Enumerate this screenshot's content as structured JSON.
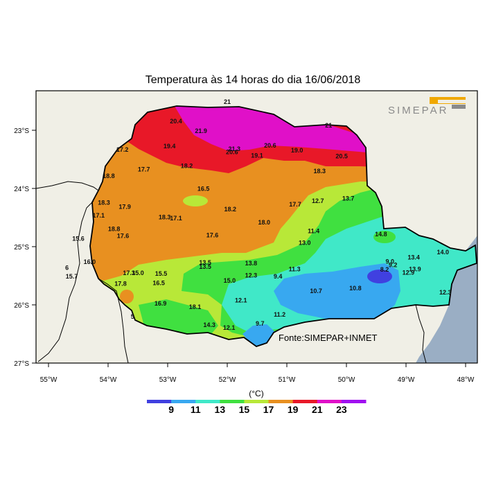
{
  "title": "Temperatura às 14 horas do dia 16/06/2018",
  "logo_text": "SIMEPAR",
  "source": "Fonte:SIMEPAR+INMET",
  "colorbar": {
    "unit": "(°C)",
    "labels": [
      "9",
      "11",
      "13",
      "15",
      "17",
      "19",
      "21",
      "23"
    ],
    "colors": [
      "#4040e0",
      "#38a8f0",
      "#40e8c8",
      "#40e040",
      "#b8e838",
      "#e89020",
      "#e81828",
      "#e010c8",
      "#a010f0"
    ]
  },
  "axes": {
    "lat_labels": [
      "23°S",
      "24°S",
      "25°S",
      "26°S",
      "27°S"
    ],
    "lon_labels": [
      "55°W",
      "54°W",
      "53°W",
      "52°W",
      "51°W",
      "50°W",
      "49°W",
      "48°W"
    ]
  },
  "colors": {
    "background": "#f0efe6",
    "ocean": "#9aaec4",
    "border": "#000000"
  },
  "observations": [
    {
      "v": "20.4",
      "lon": -52.86,
      "lat": -22.88
    },
    {
      "v": "21.9",
      "lon": -52.44,
      "lat": -23.05
    },
    {
      "v": "19.4",
      "lon": -52.97,
      "lat": -23.31
    },
    {
      "v": "20.6",
      "lon": -51.92,
      "lat": -23.41
    },
    {
      "v": "21.3",
      "lon": -51.88,
      "lat": -23.36
    },
    {
      "v": "20.6",
      "lon": -51.28,
      "lat": -23.3
    },
    {
      "v": "19.1",
      "lon": -51.5,
      "lat": -23.47
    },
    {
      "v": "19.0",
      "lon": -50.83,
      "lat": -23.38
    },
    {
      "v": "20.5",
      "lon": -50.08,
      "lat": -23.48
    },
    {
      "v": "17.2",
      "lon": -53.76,
      "lat": -23.37
    },
    {
      "v": "17.7",
      "lon": -53.4,
      "lat": -23.71
    },
    {
      "v": "18.2",
      "lon": -52.68,
      "lat": -23.65
    },
    {
      "v": "18.3",
      "lon": -50.45,
      "lat": -23.74
    },
    {
      "v": "18.8",
      "lon": -53.99,
      "lat": -23.82
    },
    {
      "v": "16.5",
      "lon": -52.4,
      "lat": -24.04
    },
    {
      "v": "18.3",
      "lon": -54.07,
      "lat": -24.28
    },
    {
      "v": "17.9",
      "lon": -53.72,
      "lat": -24.35
    },
    {
      "v": "18.2",
      "lon": -51.95,
      "lat": -24.39
    },
    {
      "v": "17.7",
      "lon": -50.86,
      "lat": -24.31
    },
    {
      "v": "12.7",
      "lon": -50.48,
      "lat": -24.25
    },
    {
      "v": "13.7",
      "lon": -49.97,
      "lat": -24.21
    },
    {
      "v": "17.1",
      "lon": -54.16,
      "lat": -24.5
    },
    {
      "v": "18.3",
      "lon": -53.05,
      "lat": -24.53
    },
    {
      "v": "17.1",
      "lon": -52.86,
      "lat": -24.55
    },
    {
      "v": "18.0",
      "lon": -51.38,
      "lat": -24.62
    },
    {
      "v": "11.4",
      "lon": -50.55,
      "lat": -24.77
    },
    {
      "v": "14.8",
      "lon": -49.42,
      "lat": -24.82
    },
    {
      "v": "18.8",
      "lon": -53.9,
      "lat": -24.73
    },
    {
      "v": "17.6",
      "lon": -53.75,
      "lat": -24.85
    },
    {
      "v": "17.6",
      "lon": -52.25,
      "lat": -24.84
    },
    {
      "v": "15.6",
      "lon": -54.5,
      "lat": -24.9
    },
    {
      "v": "13.0",
      "lon": -50.7,
      "lat": -24.97
    },
    {
      "v": "14.0",
      "lon": -48.38,
      "lat": -25.13
    },
    {
      "v": "16.0",
      "lon": -54.31,
      "lat": -25.3
    },
    {
      "v": "13.5",
      "lon": -52.37,
      "lat": -25.31
    },
    {
      "v": "13.5",
      "lon": -52.37,
      "lat": -25.38
    },
    {
      "v": "13.8",
      "lon": -51.6,
      "lat": -25.32
    },
    {
      "v": "11.3",
      "lon": -50.87,
      "lat": -25.42
    },
    {
      "v": "9.0",
      "lon": -49.27,
      "lat": -25.29
    },
    {
      "v": "9.2",
      "lon": -49.22,
      "lat": -25.35
    },
    {
      "v": "8.2",
      "lon": -49.36,
      "lat": -25.43
    },
    {
      "v": "13.4",
      "lon": -48.87,
      "lat": -25.22
    },
    {
      "v": "13.9",
      "lon": -48.85,
      "lat": -25.42
    },
    {
      "v": "12.9",
      "lon": -48.96,
      "lat": -25.48
    },
    {
      "v": "6",
      "lon": -54.69,
      "lat": -25.4
    },
    {
      "v": "17.3",
      "lon": -53.65,
      "lat": -25.49
    },
    {
      "v": "15.0",
      "lon": -53.5,
      "lat": -25.49
    },
    {
      "v": "15.5",
      "lon": -53.11,
      "lat": -25.5
    },
    {
      "v": "15.7",
      "lon": -54.61,
      "lat": -25.55
    },
    {
      "v": "12.3",
      "lon": -51.6,
      "lat": -25.53
    },
    {
      "v": "9.4",
      "lon": -51.15,
      "lat": -25.55
    },
    {
      "v": "15.0",
      "lon": -51.96,
      "lat": -25.62
    },
    {
      "v": "17.8",
      "lon": -53.79,
      "lat": -25.67
    },
    {
      "v": "16.5",
      "lon": -53.15,
      "lat": -25.66
    },
    {
      "v": "10.7",
      "lon": -50.51,
      "lat": -25.8
    },
    {
      "v": "10.8",
      "lon": -49.85,
      "lat": -25.75
    },
    {
      "v": "12.3",
      "lon": -48.34,
      "lat": -25.82
    },
    {
      "v": "12.1",
      "lon": -51.77,
      "lat": -25.96
    },
    {
      "v": "16.9",
      "lon": -53.12,
      "lat": -26.01
    },
    {
      "v": "18.1",
      "lon": -52.54,
      "lat": -26.07
    },
    {
      "v": "11.2",
      "lon": -51.12,
      "lat": -26.2
    },
    {
      "v": "5",
      "lon": -53.59,
      "lat": -26.24
    },
    {
      "v": "14.3",
      "lon": -52.3,
      "lat": -26.38
    },
    {
      "v": "9.7",
      "lon": -51.45,
      "lat": -26.36
    },
    {
      "v": "12.1",
      "lon": -51.97,
      "lat": -26.43
    },
    {
      "v": "21",
      "lon": -52.0,
      "lat": -22.55
    },
    {
      "v": "21",
      "lon": -50.3,
      "lat": -22.95
    }
  ]
}
